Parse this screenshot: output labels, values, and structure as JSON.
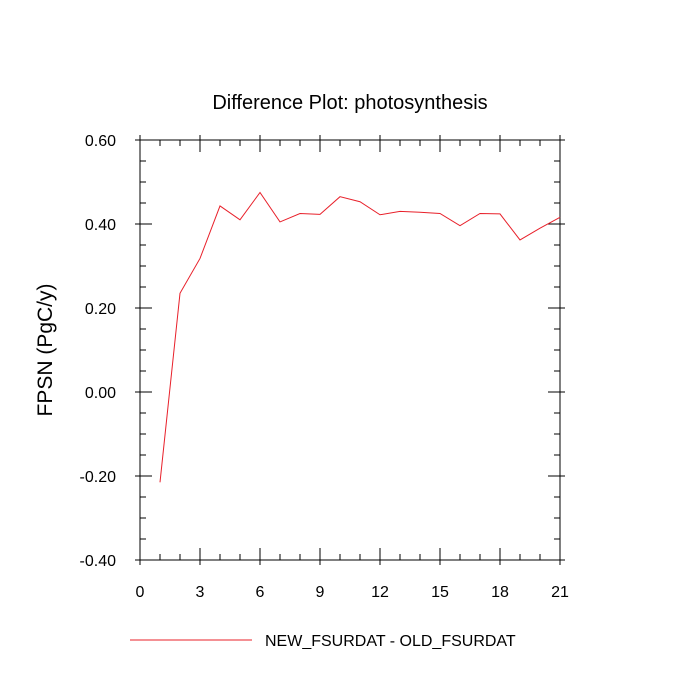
{
  "chart_data": {
    "type": "line",
    "title": "Difference Plot: photosynthesis",
    "xlabel": "",
    "ylabel": "FPSN  (PgC/y)",
    "xlim": [
      0,
      21
    ],
    "ylim": [
      -0.4,
      0.6
    ],
    "xticks": [
      0,
      3,
      6,
      9,
      12,
      15,
      18,
      21
    ],
    "xtick_labels": [
      "0",
      "3",
      "6",
      "9",
      "12",
      "15",
      "18",
      "21"
    ],
    "yticks": [
      -0.4,
      -0.2,
      0.0,
      0.2,
      0.4,
      0.6
    ],
    "ytick_labels": [
      "-0.40",
      "-0.20",
      "0.00",
      "0.20",
      "0.40",
      "0.60"
    ],
    "grid": false,
    "legend_position": "bottom",
    "series": [
      {
        "name": "NEW_FSURDAT - OLD_FSURDAT",
        "color": "#e8202a",
        "x": [
          1,
          2,
          3,
          4,
          5,
          6,
          7,
          8,
          9,
          10,
          11,
          12,
          13,
          14,
          15,
          16,
          17,
          18,
          19,
          20,
          21
        ],
        "y": [
          -0.215,
          0.235,
          0.318,
          0.443,
          0.41,
          0.475,
          0.405,
          0.425,
          0.423,
          0.465,
          0.453,
          0.422,
          0.43,
          0.428,
          0.425,
          0.396,
          0.425,
          0.424,
          0.362,
          0.39,
          0.416
        ]
      }
    ]
  }
}
